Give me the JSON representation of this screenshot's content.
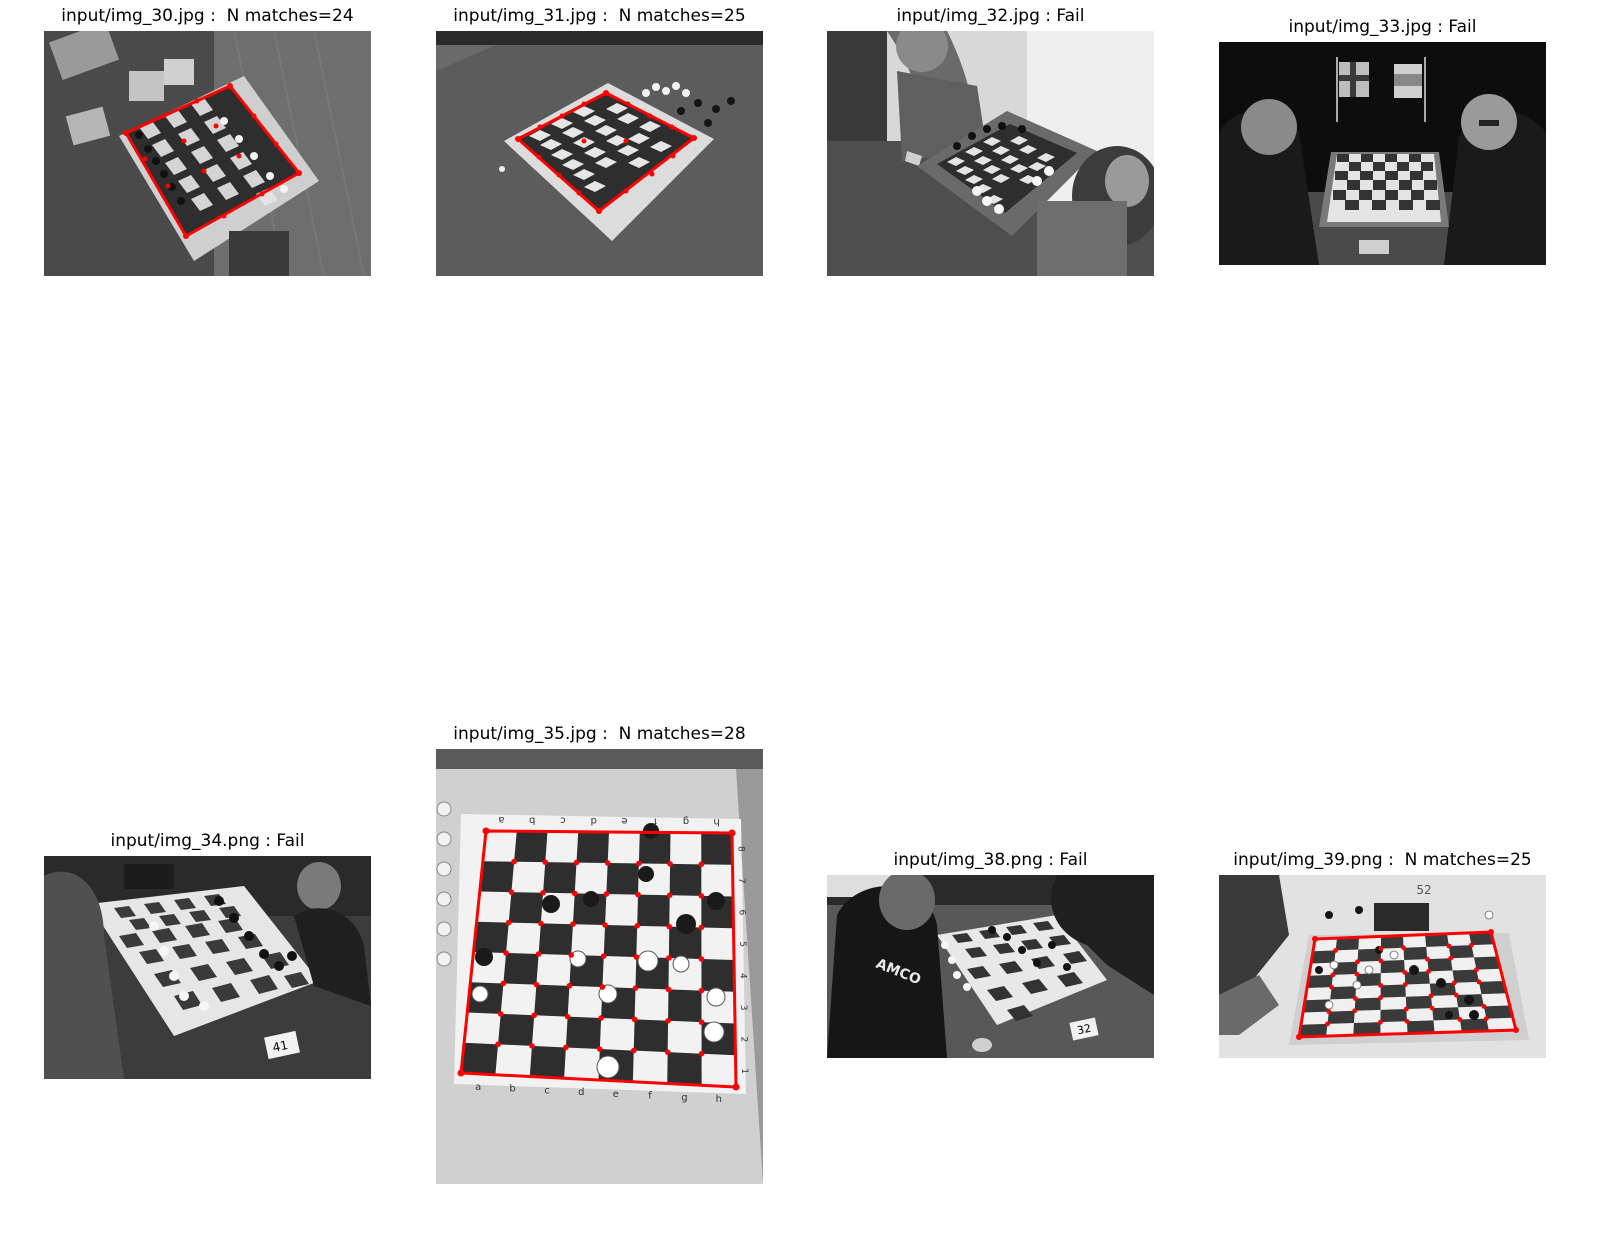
{
  "colors": {
    "detection": "#ff0000",
    "board_light": "#e6e6e6",
    "board_dark": "#2e2e2e",
    "table_gray": "#5a5a5a"
  },
  "panels": [
    {
      "title": "input/img_30.jpg :  N matches=24",
      "detected": true
    },
    {
      "title": "input/img_31.jpg :  N matches=25",
      "detected": true
    },
    {
      "title": "input/img_32.jpg : Fail",
      "detected": false
    },
    {
      "title": "input/img_33.jpg : Fail",
      "detected": false
    },
    {
      "title": "input/img_34.png : Fail",
      "detected": false,
      "board_card": "41"
    },
    {
      "title": "input/img_35.jpg :  N matches=28",
      "detected": true,
      "file_letters": [
        "a",
        "b",
        "c",
        "d",
        "e",
        "f",
        "g",
        "h"
      ],
      "rank_numbers": [
        "1",
        "2",
        "3",
        "4",
        "5",
        "6",
        "7",
        "8"
      ]
    },
    {
      "title": "input/img_38.png : Fail",
      "detected": false,
      "board_card": "32",
      "shirt_text": "AMCO"
    },
    {
      "title": "input/img_39.png :  N matches=25",
      "detected": true,
      "board_card": "52"
    }
  ]
}
